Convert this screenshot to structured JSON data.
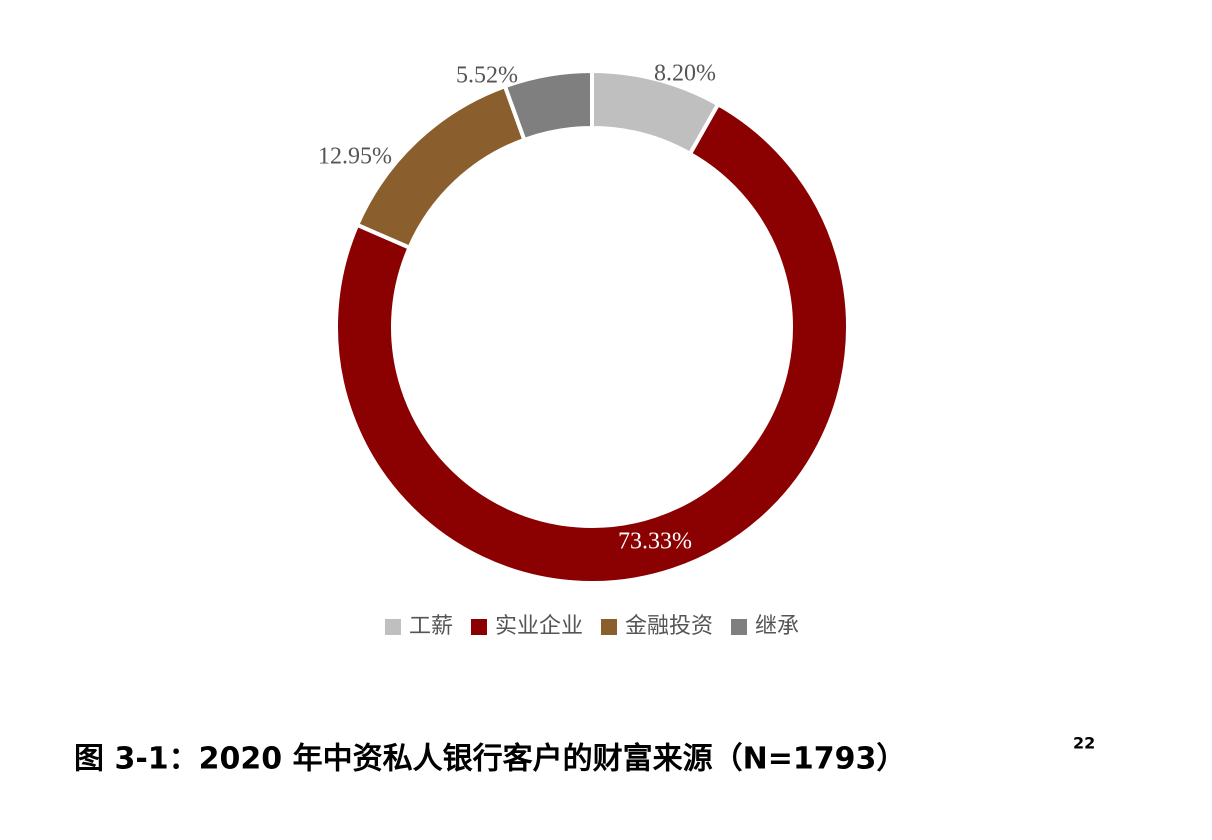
{
  "chart_data": {
    "type": "donut",
    "title": "图 3-1：2020 年中资私人银行客户的财富来源（N=1793）",
    "title_note": "22",
    "categories": [
      "工薪",
      "实业企业",
      "金融投资",
      "继承"
    ],
    "values": [
      8.2,
      73.33,
      12.95,
      5.52
    ],
    "value_labels": [
      "8.20%",
      "73.33%",
      "12.95%",
      "5.52%"
    ],
    "colors": [
      "#bfbfbf",
      "#8b0000",
      "#8b5e2e",
      "#7f7f7f"
    ],
    "legend": "bottom"
  }
}
